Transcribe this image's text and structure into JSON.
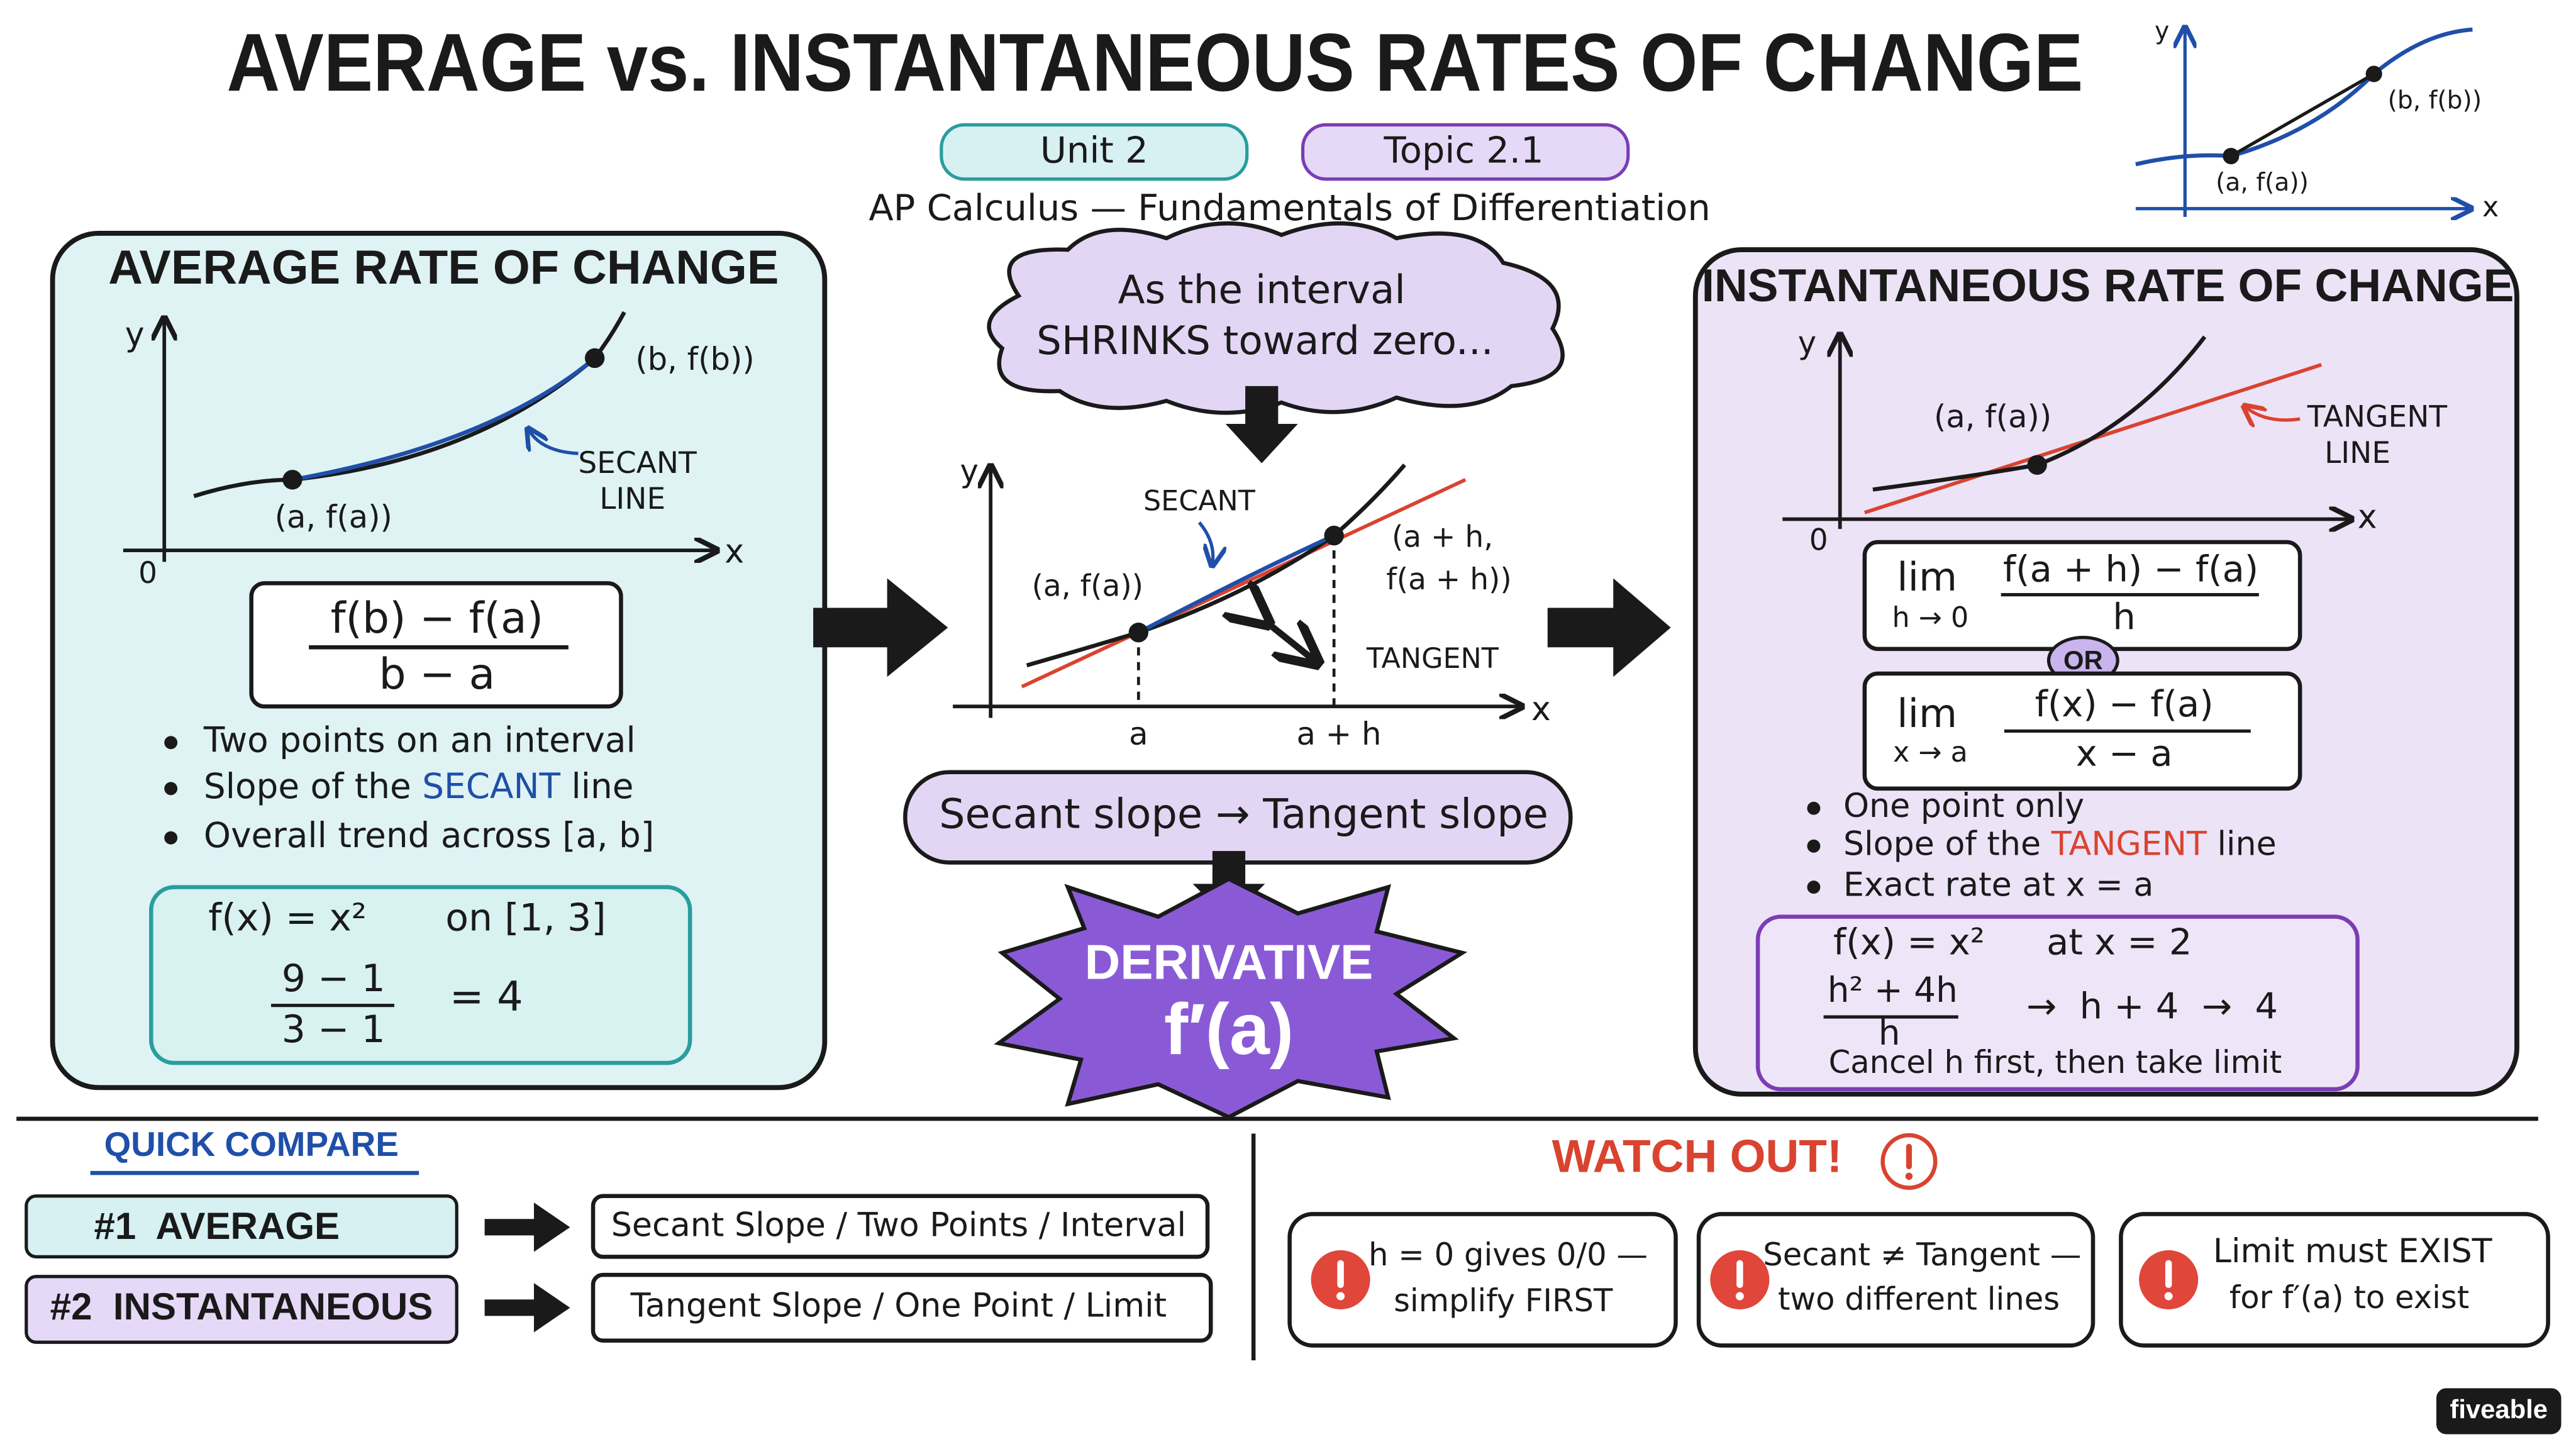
{
  "header": {
    "title": "AVERAGE vs. INSTANTANEOUS RATES OF CHANGE",
    "unit": "Unit 2",
    "topic": "Topic 2.1",
    "subtitle": "AP Calculus — Fundamentals of Differentiation"
  },
  "corner_graph": {
    "y_label": "y",
    "x_label": "x",
    "point_a": "(a, f(a))",
    "point_b": "(b, f(b))"
  },
  "average": {
    "heading": "AVERAGE RATE OF CHANGE",
    "graph": {
      "y_label": "y",
      "x_label": "x",
      "origin": "0",
      "point_a": "(a, f(a))",
      "point_b": "(b, f(b))",
      "annotation": [
        "SECANT",
        "LINE"
      ]
    },
    "formula": {
      "numerator": "f(b) − f(a)",
      "denominator": "b − a"
    },
    "bullets": [
      [
        "Two points on an interval"
      ],
      [
        "Slope of the ",
        "SECANT",
        " line"
      ],
      [
        "Overall trend across [a, b]"
      ]
    ],
    "example": {
      "function": "f(x) = x²",
      "domain": "on [1, 3]",
      "numerator": "9 − 1",
      "denominator": "3 − 1",
      "result": "= 4"
    }
  },
  "transition": {
    "cloud": [
      "As the interval",
      "SHRINKS toward zero..."
    ],
    "graph": {
      "y_label": "y",
      "x_label": "x",
      "secant_label": "SECANT",
      "point_a": "(a, f(a))",
      "point_ah": [
        "(a + h,",
        "f(a + h))"
      ],
      "tangent_label": "TANGENT",
      "tick_a": "a",
      "tick_ah": "a + h"
    },
    "pill": "Secant slope → Tangent slope",
    "result": {
      "label": "DERIVATIVE",
      "notation": "f′(a)"
    }
  },
  "instantaneous": {
    "heading": "INSTANTANEOUS RATE OF CHANGE",
    "graph": {
      "y_label": "y",
      "x_label": "x",
      "origin": "0",
      "point_a": "(a, f(a))",
      "annotation": [
        "TANGENT",
        "LINE"
      ]
    },
    "formula_1": {
      "lim": "lim",
      "approach": "h → 0",
      "numerator": "f(a + h) − f(a)",
      "denominator": "h"
    },
    "or": "OR",
    "formula_2": {
      "lim": "lim",
      "approach": "x → a",
      "numerator": "f(x) − f(a)",
      "denominator": "x − a"
    },
    "bullets": [
      [
        "One point only"
      ],
      [
        "Slope of the ",
        "TANGENT",
        " line"
      ],
      [
        "Exact rate at x = a"
      ]
    ],
    "example": {
      "function": "f(x) = x²",
      "point": "at x = 2",
      "numerator": "h² + 4h",
      "denominator": "h",
      "steps": "→  h + 4  →  4",
      "note": "Cancel h first, then take limit"
    }
  },
  "quick_compare": {
    "heading": "QUICK COMPARE",
    "rows": [
      {
        "label": "#1  AVERAGE",
        "detail": "Secant Slope / Two Points / Interval"
      },
      {
        "label": "#2  INSTANTANEOUS",
        "detail": "Tangent Slope / One Point / Limit"
      }
    ]
  },
  "watch_out": {
    "heading": "WATCH OUT!",
    "items": [
      [
        "h = 0 gives 0/0 —",
        "simplify FIRST"
      ],
      [
        "Secant ≠ Tangent —",
        "two different lines"
      ],
      [
        "Limit must EXIST",
        "for f′(a) to exist"
      ]
    ]
  },
  "brand": "fiveable"
}
